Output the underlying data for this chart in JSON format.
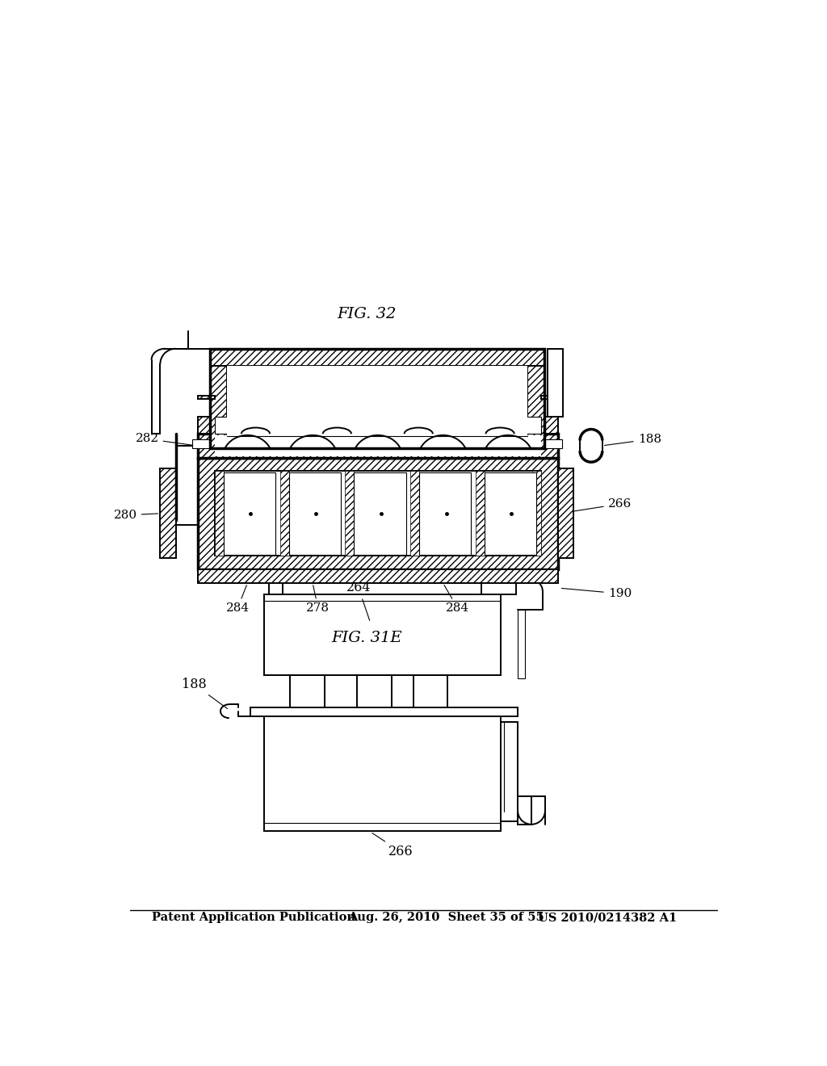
{
  "bg_color": "#ffffff",
  "line_color": "#000000",
  "header": {
    "left": "Patent Application Publication",
    "mid": "Aug. 26, 2010  Sheet 35 of 55",
    "right": "US 2010/0214382 A1"
  },
  "fig31e_caption": "FIG. 31E",
  "fig32_caption": "FIG. 32",
  "lw": 1.4,
  "lw_thick": 2.5,
  "lw_thin": 0.8
}
